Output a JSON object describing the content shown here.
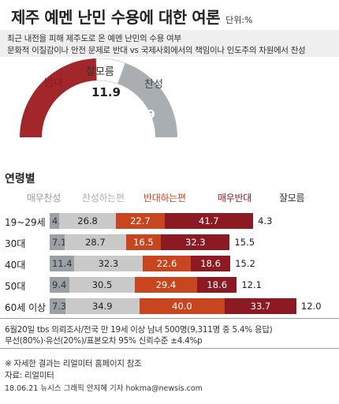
{
  "title": "제주 예멘 난민 수용에 대한 여론",
  "unit": "단위:%",
  "description": [
    "최근 내전을 피해 제주도로 온 예멘 난민의 수용 여부",
    "문화적 이질감이나 안전 문제로 반대 vs 국제사회에서의 책임이나 인도주의 차원에서 찬성"
  ],
  "colors": {
    "strong_oppose": "#8b1a22",
    "oppose": "#c8461f",
    "support": "#c9c9c9",
    "strong_support": "#9aa1a6",
    "undecided_bar": "#ffffff",
    "gauge_oppose": "#a2272b",
    "gauge_support": "#a8aeb2",
    "gauge_undecided": "#ffffff"
  },
  "chart_data": [
    {
      "type": "pie",
      "title": "",
      "slices": [
        {
          "label": "반대",
          "value": 49.1
        },
        {
          "label": "잘모름",
          "value": 11.9
        },
        {
          "label": "찬성",
          "value": 39.0
        }
      ]
    },
    {
      "type": "bar",
      "title": "연령별",
      "stacked": true,
      "orientation": "horizontal",
      "categories": [
        "19~29세",
        "30대",
        "40대",
        "50대",
        "60세 이상"
      ],
      "series": [
        {
          "name": "매우찬성",
          "values": [
            4.4,
            7.1,
            11.4,
            9.4,
            7.3
          ]
        },
        {
          "name": "찬성하는편",
          "values": [
            26.8,
            28.7,
            32.3,
            30.5,
            34.9
          ]
        },
        {
          "name": "반대하는편",
          "values": [
            22.7,
            16.5,
            22.6,
            29.4,
            40.0
          ]
        },
        {
          "name": "매우반대",
          "values": [
            41.7,
            32.3,
            18.6,
            18.6,
            33.7
          ]
        },
        {
          "name": "잘모름",
          "values": [
            4.3,
            15.5,
            15.2,
            12.1,
            12.0
          ]
        }
      ],
      "value_labels": {
        "strong_support": [
          "4.4",
          "7.1",
          "11.4",
          "9.4",
          "7.3"
        ],
        "support": [
          "26.8",
          "28.7",
          "32.3",
          "30.5",
          "34.9"
        ],
        "oppose": [
          "22.7",
          "16.5",
          "22.6",
          "29.4",
          "40.0"
        ],
        "strong_oppose": [
          "41.7",
          "32.3",
          "18.6",
          "18.6",
          "33.7"
        ],
        "undecided": [
          "4.3",
          "15.5",
          "15.2",
          "12.1",
          "12.0"
        ]
      }
    }
  ],
  "footnotes": [
    "6월20일 tbs 의뢰조사/전국 만 19세 이상 남녀 500명(9,311명 중 5.4% 응답)",
    "무선(80%)·유선(20%)/표본오차 95% 신뢰수준 ±4.4%p",
    "※ 자세한 결과는 리얼미터 홈페이지 참조",
    "자료: 리얼미터",
    "18.06.21 뉴시스 그래픽 안지혜 기자 hokma@newsis.com"
  ]
}
